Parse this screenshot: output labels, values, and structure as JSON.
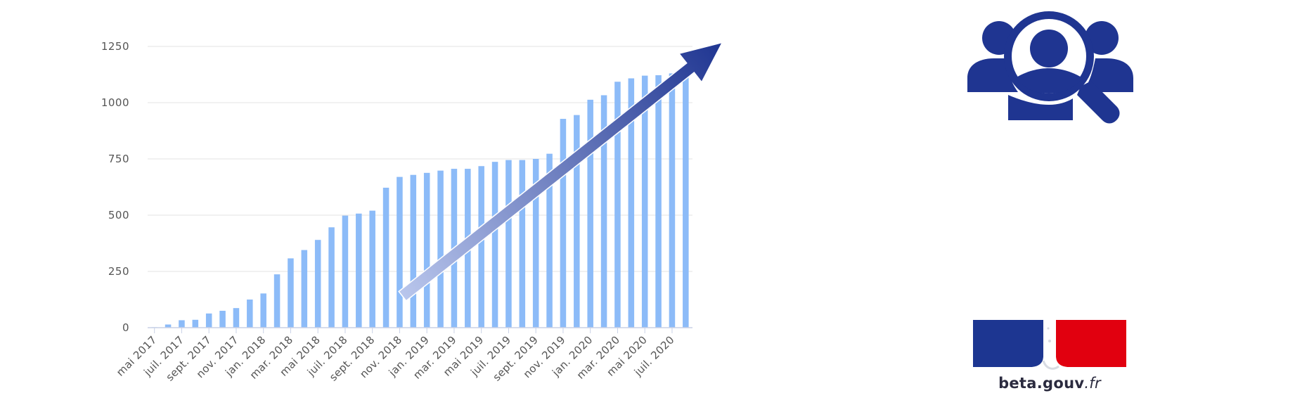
{
  "chart_data": {
    "type": "bar",
    "title": "",
    "xlabel": "",
    "ylabel": "",
    "ylim": [
      0,
      1250
    ],
    "yticks": [
      0,
      250,
      500,
      750,
      1000,
      1250
    ],
    "grid": true,
    "bar_color": "#8cbbf8",
    "trend_arrow": {
      "from": [
        18,
        140
      ],
      "to": [
        42,
        1280
      ],
      "color_start": "#b9c6ec",
      "color_end": "#1f3591"
    },
    "x_tick_labels": [
      "mai 2017",
      "juil. 2017",
      "sept. 2017",
      "nov. 2017",
      "jan. 2018",
      "mar. 2018",
      "mai 2018",
      "juil. 2018",
      "sept. 2018",
      "nov. 2018",
      "jan. 2019",
      "mar. 2019",
      "mai 2019",
      "juil. 2019",
      "sept. 2019",
      "nov. 2019",
      "jan. 2020",
      "mar. 2020",
      "mai 2020",
      "juil. 2020"
    ],
    "categories": [
      "mai 2017",
      "juin 2017",
      "juil. 2017",
      "août 2017",
      "sept. 2017",
      "oct. 2017",
      "nov. 2017",
      "déc. 2017",
      "jan. 2018",
      "févr. 2018",
      "mar. 2018",
      "avr. 2018",
      "mai 2018",
      "juin 2018",
      "juil. 2018",
      "août 2018",
      "sept. 2018",
      "oct. 2018",
      "nov. 2018",
      "déc. 2018",
      "jan. 2019",
      "févr. 2019",
      "mar. 2019",
      "avr. 2019",
      "mai 2019",
      "juin 2019",
      "juil. 2019",
      "août 2019",
      "sept. 2019",
      "oct. 2019",
      "nov. 2019",
      "déc. 2019",
      "jan. 2020",
      "févr. 2020",
      "mar. 2020",
      "avr. 2020",
      "mai 2020",
      "juin 2020",
      "juil. 2020",
      "août 2020"
    ],
    "values": [
      2,
      14,
      33,
      35,
      63,
      75,
      87,
      125,
      152,
      237,
      308,
      345,
      390,
      446,
      498,
      507,
      520,
      622,
      670,
      679,
      688,
      698,
      706,
      706,
      718,
      737,
      745,
      745,
      750,
      773,
      928,
      945,
      1013,
      1033,
      1093,
      1108,
      1120,
      1122,
      1130,
      1150
    ]
  },
  "icons": {
    "people_search": "people-search-icon",
    "icon_color": "#1f3591"
  },
  "brand": {
    "name": "beta.gouv",
    "suffix": ".fr",
    "flag_colors": [
      "#1d3691",
      "#ffffff",
      "#e1000f"
    ]
  }
}
